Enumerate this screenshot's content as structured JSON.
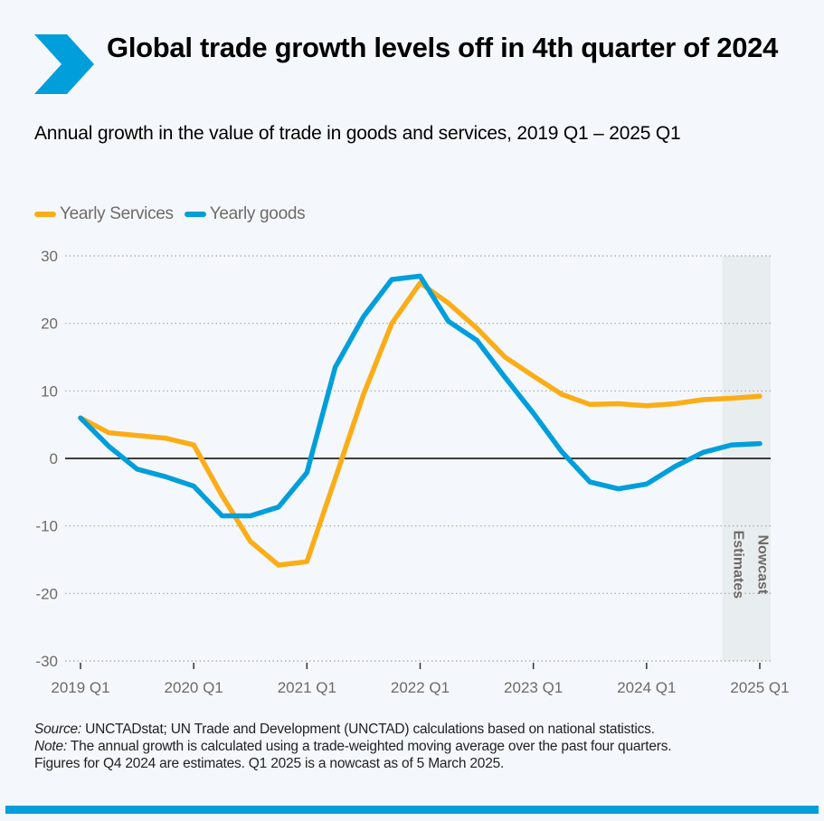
{
  "header": {
    "title": "Global trade growth levels off in 4th quarter of 2024",
    "subtitle": "Annual growth in the value of trade in goods and services, 2019 Q1 – 2025 Q1"
  },
  "colors": {
    "services": "#fbad18",
    "goods": "#009edb",
    "accent": "#009edb",
    "band": "#e8edf0",
    "axis_text": "#6f6a66"
  },
  "chart_data": {
    "type": "line",
    "title": "Global trade growth levels off in 4th quarter of 2024",
    "subtitle": "Annual growth in the value of trade in goods and services, 2019 Q1 – 2025 Q1",
    "xlabel": "",
    "ylabel": "",
    "ylim": [
      -30,
      30
    ],
    "yticks": [
      30,
      20,
      10,
      0,
      -10,
      -20,
      -30
    ],
    "grid": true,
    "legend": "top-left",
    "x": [
      "2019 Q1",
      "2019 Q2",
      "2019 Q3",
      "2019 Q4",
      "2020 Q1",
      "2020 Q2",
      "2020 Q3",
      "2020 Q4",
      "2021 Q1",
      "2021 Q2",
      "2021 Q3",
      "2021 Q4",
      "2022 Q1",
      "2022 Q2",
      "2022 Q3",
      "2022 Q4",
      "2023 Q1",
      "2023 Q2",
      "2023 Q3",
      "2023 Q4",
      "2024 Q1",
      "2024 Q2",
      "2024 Q3",
      "2024 Q4",
      "2025 Q1"
    ],
    "xtick_labels": [
      "2019 Q1",
      "2020 Q1",
      "2021 Q1",
      "2022 Q1",
      "2023 Q1",
      "2024 Q1",
      "2025 Q1"
    ],
    "series": [
      {
        "name": "Yearly Services",
        "key": "services",
        "values": [
          6.0,
          3.8,
          3.4,
          3.0,
          2.0,
          -5.5,
          -12.3,
          -15.8,
          -15.3,
          -3.0,
          9.5,
          20.0,
          26.0,
          23.0,
          19.3,
          15.0,
          12.2,
          9.5,
          8.0,
          8.1,
          7.8,
          8.1,
          8.7,
          8.9,
          9.2
        ]
      },
      {
        "name": "Yearly goods",
        "key": "goods",
        "values": [
          6.0,
          1.8,
          -1.6,
          -2.7,
          -4.1,
          -8.5,
          -8.5,
          -7.2,
          -2.1,
          13.5,
          21.0,
          26.5,
          27.0,
          20.3,
          17.5,
          12.0,
          6.7,
          1.0,
          -3.5,
          -4.5,
          -3.8,
          -1.2,
          0.9,
          2.0,
          2.2
        ]
      }
    ],
    "shaded_region": {
      "from": "2024 Q4",
      "to": "2025 Q1",
      "labels": [
        "Estimates",
        "Nowcast"
      ]
    }
  },
  "legend": {
    "items": [
      {
        "label": "Yearly Services",
        "key": "services"
      },
      {
        "label": "Yearly goods",
        "key": "goods"
      }
    ]
  },
  "notes": {
    "source_label": "Source:",
    "source_text": " UNCTADstat; UN Trade and Development (UNCTAD) calculations based on national statistics.",
    "note_label": "Note:",
    "note_text": " The annual growth is calculated using a trade-weighted moving average over the past four quarters.",
    "note_text2": "Figures for Q4 2024 are estimates. Q1 2025 is a nowcast as of 5 March 2025."
  }
}
